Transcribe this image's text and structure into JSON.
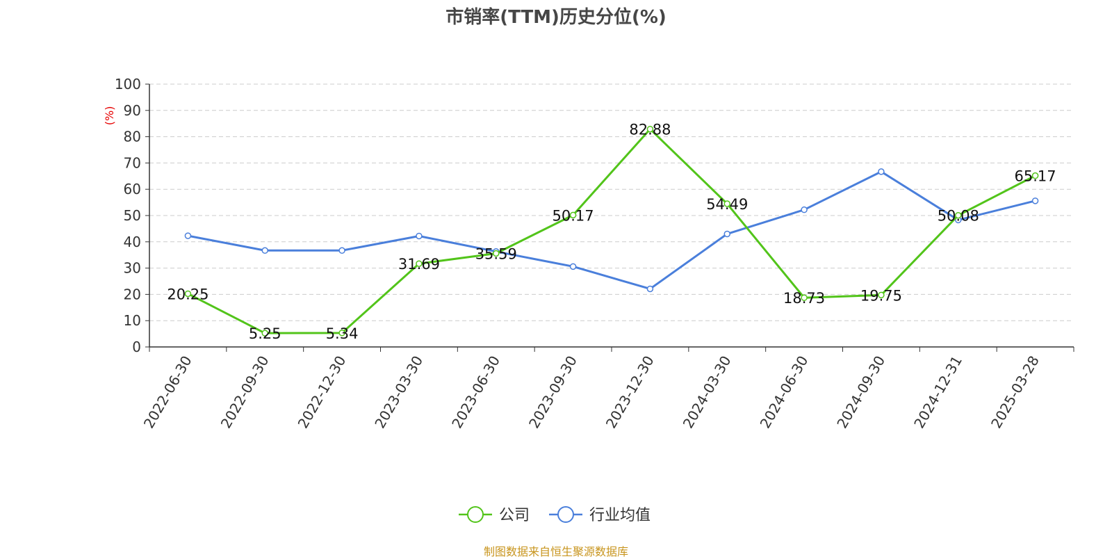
{
  "chart_data": {
    "type": "line",
    "title": "市销率(TTM)历史分位(%)",
    "ylabel": "(%)",
    "ylim": [
      0,
      100
    ],
    "yticks": [
      0,
      10,
      20,
      30,
      40,
      50,
      60,
      70,
      80,
      90,
      100
    ],
    "categories": [
      "2022-06-30",
      "2022-09-30",
      "2022-12-30",
      "2023-03-30",
      "2023-06-30",
      "2023-09-30",
      "2023-12-30",
      "2024-03-30",
      "2024-06-30",
      "2024-09-30",
      "2024-12-31",
      "2025-03-28"
    ],
    "grid": true,
    "legend_position": "bottom",
    "series": [
      {
        "name": "公司",
        "color": "#52c41a",
        "values": [
          20.25,
          5.25,
          5.34,
          31.69,
          35.59,
          50.17,
          82.88,
          54.49,
          18.73,
          19.75,
          50.08,
          65.17
        ],
        "labels": [
          "20.25",
          "5.25",
          "5.34",
          "31.69",
          "35.59",
          "50.17",
          "82.88",
          "54.49",
          "18.73",
          "19.75",
          "50.08",
          "65.17"
        ]
      },
      {
        "name": "行业均值",
        "color": "#4a7fdb",
        "values": [
          42.3,
          36.7,
          36.7,
          42.2,
          36.3,
          30.6,
          22.1,
          43.0,
          52.2,
          66.7,
          48.3,
          55.6
        ]
      }
    ]
  },
  "source": "制图数据来自恒生聚源数据库"
}
